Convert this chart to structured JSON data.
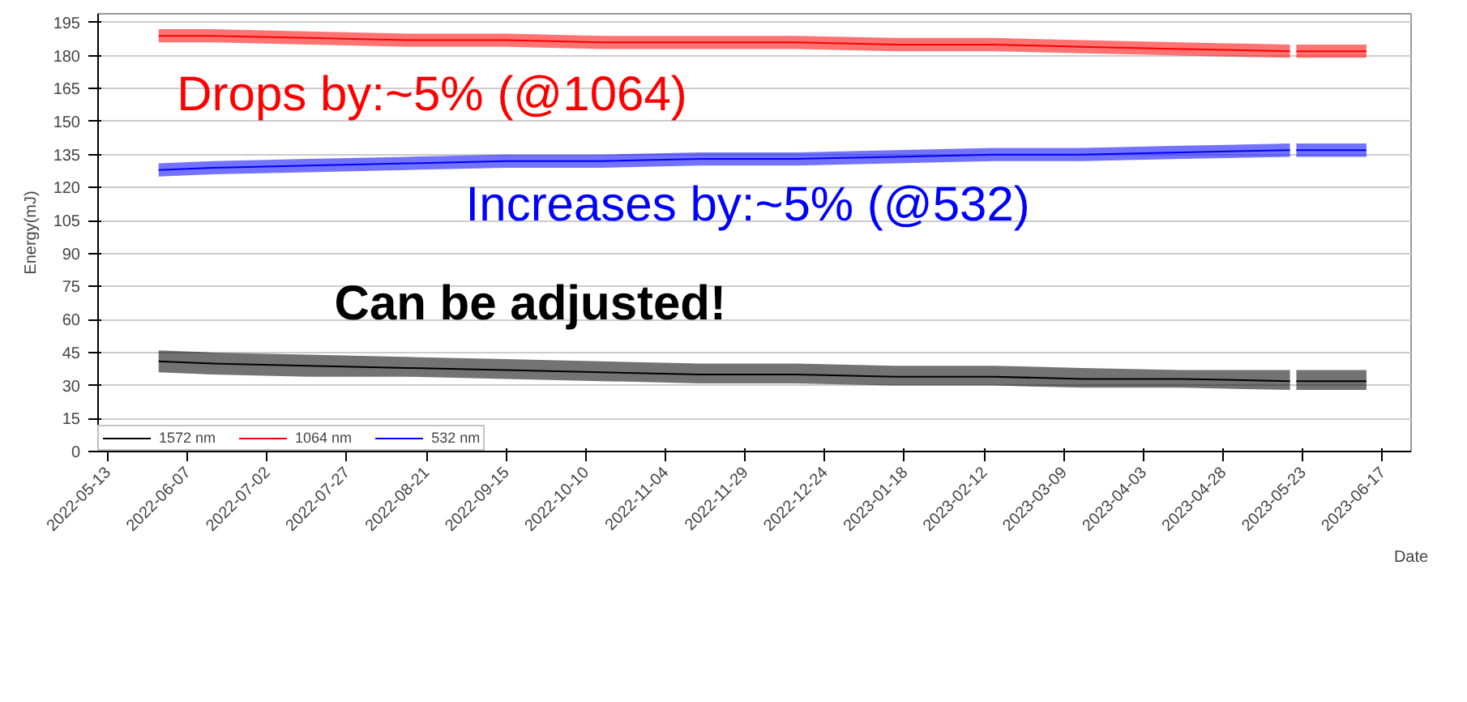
{
  "chart_data": {
    "type": "line",
    "xlabel": "Date",
    "ylabel": "Energy(mJ)",
    "x": [
      "2022-05-29",
      "2022-06-15",
      "2022-07-15",
      "2022-08-15",
      "2022-09-15",
      "2022-10-15",
      "2022-11-15",
      "2022-12-15",
      "2023-01-15",
      "2023-02-15",
      "2023-03-15",
      "2023-04-15",
      "2023-05-19",
      "2023-05-20",
      "2023-05-21",
      "2023-06-12"
    ],
    "series": [
      {
        "name": "1572 nm",
        "color": "#000000",
        "values": [
          41,
          40,
          39,
          38,
          37,
          36,
          35,
          35,
          34,
          34,
          33,
          33,
          32,
          null,
          32,
          32
        ],
        "lower": [
          36,
          35,
          34,
          34,
          33,
          32,
          31,
          31,
          30,
          30,
          29,
          29,
          28,
          null,
          28,
          28
        ],
        "upper": [
          46,
          45,
          44,
          43,
          42,
          41,
          40,
          40,
          39,
          39,
          38,
          37,
          37,
          null,
          37,
          37
        ]
      },
      {
        "name": "1064 nm",
        "color": "#ff0000",
        "values": [
          189,
          189,
          188,
          187,
          187,
          186,
          186,
          186,
          185,
          185,
          184,
          183,
          182,
          null,
          182,
          182
        ],
        "lower": [
          186,
          186,
          185,
          184,
          184,
          183,
          183,
          183,
          182,
          182,
          181,
          180,
          179,
          null,
          179,
          179
        ],
        "upper": [
          192,
          192,
          191,
          190,
          190,
          189,
          189,
          189,
          188,
          188,
          187,
          186,
          185,
          null,
          185,
          185
        ]
      },
      {
        "name": "532 nm",
        "color": "#0000ff",
        "values": [
          128,
          129,
          130,
          131,
          132,
          132,
          133,
          133,
          134,
          135,
          135,
          136,
          137,
          null,
          137,
          137
        ],
        "lower": [
          125,
          126,
          127,
          128,
          129,
          129,
          130,
          130,
          131,
          132,
          132,
          133,
          134,
          null,
          134,
          134
        ],
        "upper": [
          131,
          132,
          133,
          134,
          135,
          135,
          136,
          136,
          137,
          138,
          138,
          139,
          140,
          null,
          140,
          140
        ]
      }
    ],
    "xlim": [
      "2022-05-10",
      "2023-06-26"
    ],
    "xticks": [
      "2022-05-13",
      "2022-06-07",
      "2022-07-02",
      "2022-07-27",
      "2022-08-21",
      "2022-09-15",
      "2022-10-10",
      "2022-11-04",
      "2022-11-29",
      "2022-12-24",
      "2023-01-18",
      "2023-02-12",
      "2023-03-09",
      "2023-04-03",
      "2023-04-28",
      "2023-05-23",
      "2023-06-17"
    ],
    "ylim": [
      0,
      199
    ],
    "yticks": [
      0,
      15,
      30,
      45,
      60,
      75,
      90,
      105,
      120,
      135,
      150,
      165,
      180,
      195
    ],
    "grid": "y",
    "legend": "bottom left",
    "annotations": [
      "Drops by:~5% (@1064)",
      "Increases by:~5% (@532)",
      "Can be adjusted!"
    ]
  }
}
